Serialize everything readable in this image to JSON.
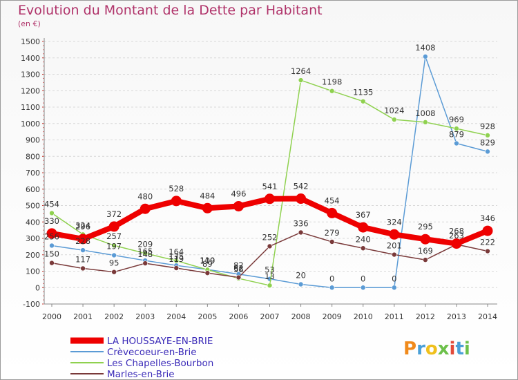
{
  "title": "Evolution du Montant de la Dette par Habitant",
  "subtitle": "(en €)",
  "logo": {
    "text": "Proxiti",
    "colors": [
      "#f08a1c",
      "#4aa0d8",
      "#f0c01c",
      "#6cc04a",
      "#e24a3a",
      "#4aa0d8",
      "#6cc04a"
    ]
  },
  "chart_data": {
    "type": "line",
    "x": [
      "2000",
      "2001",
      "2002",
      "2003",
      "2004",
      "2005",
      "2006",
      "2007",
      "2008",
      "2009",
      "2010",
      "2011",
      "2012",
      "2013",
      "2014"
    ],
    "ylim": [
      -100,
      1500
    ],
    "yticks": [
      -100,
      0,
      100,
      200,
      300,
      400,
      500,
      600,
      700,
      800,
      900,
      1000,
      1100,
      1200,
      1300,
      1400,
      1500
    ],
    "grid": "horizontal dashed",
    "legend": "bottom-left",
    "series": [
      {
        "name": "LA HOUSSAYE-EN-BRIE",
        "color": "#ee0000",
        "values": [
          330,
          296,
          372,
          480,
          528,
          484,
          496,
          541,
          542,
          454,
          367,
          324,
          295,
          268,
          346
        ],
        "labels": [
          "330",
          "296",
          "372",
          "480",
          "528",
          "484",
          "496",
          "541",
          "542",
          "454",
          "367",
          "324",
          "295",
          "268",
          "346"
        ]
      },
      {
        "name": "Crèvecoeur-en-Brie",
        "color": "#5b9bd5",
        "values": [
          256,
          228,
          197,
          165,
          135,
          110,
          82,
          53,
          20,
          0,
          0,
          0,
          1408,
          879,
          829
        ],
        "labels": [
          "256",
          "228",
          "197",
          "165",
          "135",
          "110",
          "82",
          "53",
          "20",
          "0",
          "0",
          "0",
          "1408",
          "879",
          "829"
        ]
      },
      {
        "name": "Les Chapelles-Bourbon",
        "color": "#8fd14f",
        "values": [
          454,
          324,
          257,
          209,
          164,
          109,
          56,
          13,
          1264,
          1198,
          1135,
          1024,
          1008,
          969,
          928
        ],
        "labels": [
          "454",
          "324",
          "257",
          "209",
          "164",
          "109",
          "56",
          "13",
          "1264",
          "1198",
          "1135",
          "1024",
          "1008",
          "969",
          "928"
        ]
      },
      {
        "name": "Marles-en-Brie",
        "color": "#7a3a3a",
        "values": [
          150,
          117,
          95,
          148,
          119,
          89,
          62,
          252,
          336,
          279,
          240,
          201,
          169,
          263,
          222
        ],
        "labels": [
          "150",
          "117",
          "95",
          "148",
          "119",
          "89",
          "62",
          "252",
          "336",
          "279",
          "240",
          "201",
          "169",
          "263",
          "222"
        ]
      }
    ]
  }
}
